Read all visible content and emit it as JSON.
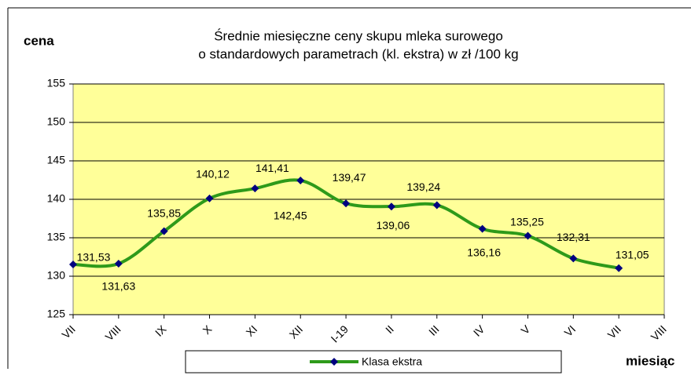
{
  "chart_data": {
    "type": "line",
    "title": [
      "Średnie miesięczne ceny skupu mleka surowego",
      "o standardowych parametrach (kl. ekstra) w zł /100 kg"
    ],
    "y_label": "cena",
    "x_label": "miesiąc",
    "categories": [
      "VII",
      "VIII",
      "IX",
      "X",
      "XI",
      "XII",
      "I-19",
      "II",
      "III",
      "IV",
      "V",
      "VI",
      "VII",
      "VIII"
    ],
    "series": [
      {
        "name": "Klasa ekstra",
        "color": "#2e9a1a",
        "marker_color": "#000080",
        "values": [
          131.53,
          131.63,
          135.85,
          140.12,
          141.41,
          142.45,
          139.47,
          139.06,
          139.24,
          136.16,
          135.25,
          132.31,
          131.05,
          null
        ],
        "value_labels": [
          "131,53",
          "131,63",
          "135,85",
          "140,12",
          "141,41",
          "142,45",
          "139,47",
          "139,06",
          "139,24",
          "136,16",
          "135,25",
          "132,31",
          "131,05",
          null
        ]
      }
    ],
    "ylim": [
      125,
      155
    ],
    "yticks": [
      125,
      130,
      135,
      140,
      145,
      150,
      155
    ],
    "grid": true,
    "plot_background": "#ffff99"
  }
}
